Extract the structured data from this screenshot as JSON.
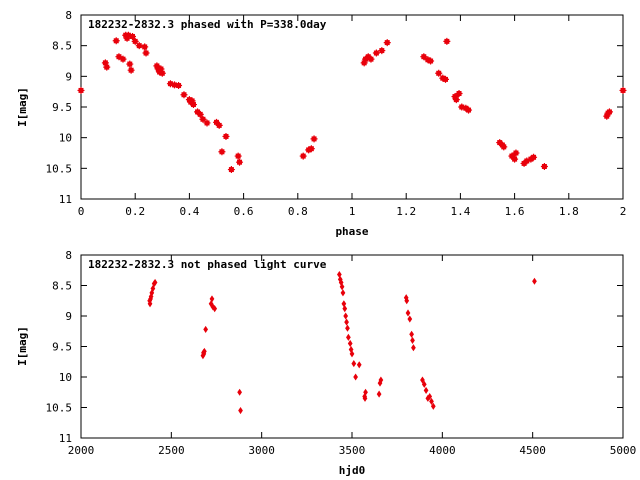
{
  "chart_data": [
    {
      "type": "scatter",
      "title": "182232-2832.3 phased with P=338.0day",
      "xlabel": "phase",
      "ylabel": "I[mag]",
      "xlim": [
        0,
        2
      ],
      "ylim": [
        11,
        8
      ],
      "y_inverted": true,
      "xticks": [
        0,
        0.2,
        0.4,
        0.6,
        0.8,
        1,
        1.2,
        1.4,
        1.6,
        1.8,
        2
      ],
      "xtick_labels": [
        "0",
        "0.2",
        "0.4",
        "0.6",
        "0.8",
        "1",
        "1.2",
        "1.4",
        "1.6",
        "1.8",
        "2"
      ],
      "yticks": [
        8,
        8.5,
        9,
        9.5,
        10,
        10.5,
        11
      ],
      "ytick_labels": [
        "8",
        "8.5",
        "9",
        "9.5",
        "10",
        "10.5",
        "11"
      ],
      "grid": false,
      "marker_color": "#e8000b",
      "marker": "square-star",
      "series": [
        {
          "x": [
            0.0,
            0.09,
            0.095,
            0.13,
            0.14,
            0.155,
            0.165,
            0.17,
            0.175,
            0.18,
            0.185,
            0.19,
            0.2,
            0.215,
            0.235,
            0.24,
            0.28,
            0.285,
            0.29,
            0.295,
            0.3,
            0.33,
            0.345,
            0.36,
            0.38,
            0.4,
            0.405,
            0.41,
            0.415,
            0.43,
            0.44,
            0.45,
            0.465,
            0.5,
            0.51,
            0.52,
            0.535,
            0.555,
            0.58,
            0.585,
            0.82,
            0.84,
            0.85,
            0.86,
            1.045,
            1.05,
            1.06,
            1.07,
            1.09,
            1.11,
            1.13,
            1.265,
            1.28,
            1.29,
            1.32,
            1.335,
            1.345,
            1.35,
            1.38,
            1.385,
            1.395,
            1.405,
            1.42,
            1.43,
            1.545,
            1.555,
            1.56,
            1.59,
            1.6,
            1.605,
            1.635,
            1.645,
            1.66,
            1.67,
            1.71,
            1.94,
            1.945,
            1.95,
            2.0
          ],
          "y": [
            9.23,
            8.78,
            8.85,
            8.42,
            8.68,
            8.72,
            8.33,
            8.38,
            8.33,
            8.8,
            8.9,
            8.35,
            8.43,
            8.5,
            8.52,
            8.62,
            8.83,
            8.88,
            8.93,
            8.88,
            8.95,
            9.12,
            9.14,
            9.15,
            9.3,
            9.38,
            9.42,
            9.4,
            9.46,
            9.58,
            9.62,
            9.7,
            9.76,
            9.75,
            9.8,
            10.23,
            9.98,
            10.52,
            10.3,
            10.4,
            10.3,
            10.2,
            10.18,
            10.02,
            8.78,
            8.72,
            8.68,
            8.72,
            8.62,
            8.58,
            8.45,
            8.68,
            8.73,
            8.75,
            8.95,
            9.03,
            9.05,
            8.43,
            9.33,
            9.38,
            9.28,
            9.5,
            9.52,
            9.55,
            10.08,
            10.12,
            10.15,
            10.3,
            10.35,
            10.25,
            10.42,
            10.38,
            10.35,
            10.32,
            10.47,
            9.65,
            9.6,
            9.58,
            9.23
          ]
        }
      ]
    },
    {
      "type": "scatter",
      "title": "182232-2832.3 not phased light curve",
      "xlabel": "hjd0",
      "ylabel": "I[mag]",
      "xlim": [
        2000,
        5000
      ],
      "ylim": [
        11,
        8
      ],
      "y_inverted": true,
      "xticks": [
        2000,
        2500,
        3000,
        3500,
        4000,
        4500,
        5000
      ],
      "xtick_labels": [
        "2000",
        "2500",
        "3000",
        "3500",
        "4000",
        "4500",
        "5000"
      ],
      "yticks": [
        8,
        8.5,
        9,
        9.5,
        10,
        10.5,
        11
      ],
      "ytick_labels": [
        "8",
        "8.5",
        "9",
        "9.5",
        "10",
        "10.5",
        "11"
      ],
      "grid": false,
      "marker_color": "#e8000b",
      "marker": "diamond",
      "series": [
        {
          "x": [
            2380,
            2382,
            2385,
            2388,
            2392,
            2398,
            2405,
            2410,
            2675,
            2678,
            2680,
            2683,
            2690,
            2720,
            2725,
            2730,
            2740,
            2878,
            2883,
            3430,
            3435,
            3440,
            3445,
            3450,
            3455,
            3460,
            3465,
            3470,
            3475,
            3480,
            3490,
            3495,
            3500,
            3510,
            3520,
            3540,
            3570,
            3572,
            3575,
            3650,
            3655,
            3660,
            3800,
            3803,
            3810,
            3820,
            3830,
            3835,
            3840,
            3890,
            3900,
            3910,
            3920,
            3930,
            3940,
            3950,
            4510
          ],
          "y": [
            8.75,
            8.8,
            8.72,
            8.68,
            8.62,
            8.55,
            8.47,
            8.45,
            9.65,
            9.6,
            9.62,
            9.58,
            9.22,
            8.8,
            8.72,
            8.85,
            8.88,
            10.25,
            10.55,
            8.32,
            8.4,
            8.45,
            8.52,
            8.62,
            8.8,
            8.88,
            9.0,
            9.1,
            9.2,
            9.35,
            9.45,
            9.55,
            9.62,
            9.78,
            10.0,
            9.8,
            10.32,
            10.35,
            10.25,
            10.28,
            10.1,
            10.05,
            8.7,
            8.75,
            8.95,
            9.05,
            9.3,
            9.4,
            9.52,
            10.05,
            10.12,
            10.22,
            10.35,
            10.32,
            10.4,
            10.48,
            8.43
          ]
        }
      ]
    }
  ]
}
